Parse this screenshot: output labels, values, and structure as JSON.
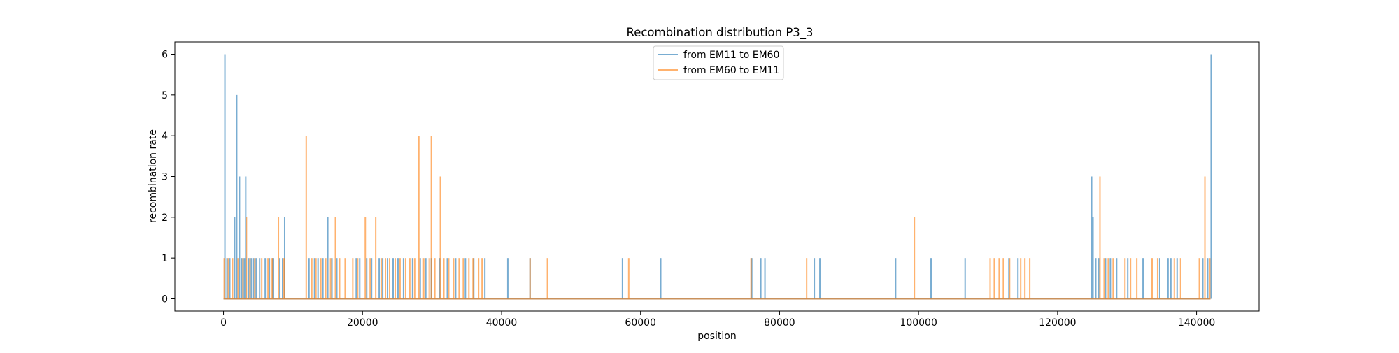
{
  "chart_data": {
    "type": "line",
    "title": "Recombination distribution P3_3",
    "xlabel": "position",
    "ylabel": "recombination rate",
    "xlim": [
      -7000,
      149000
    ],
    "ylim": [
      -0.3,
      6.3
    ],
    "xticks": [
      0,
      20000,
      40000,
      60000,
      80000,
      100000,
      120000,
      140000
    ],
    "xtick_labels": [
      "0",
      "20000",
      "40000",
      "60000",
      "80000",
      "100000",
      "120000",
      "140000"
    ],
    "yticks": [
      0,
      1,
      2,
      3,
      4,
      5,
      6
    ],
    "ytick_labels": [
      "0",
      "1",
      "2",
      "3",
      "4",
      "5",
      "6"
    ],
    "grid": false,
    "legend_position": "upper center",
    "x_range": [
      0,
      142000
    ],
    "series": [
      {
        "name": "from EM11 to EM60",
        "color": "#1f77b4",
        "spikes": [
          [
            200,
            6
          ],
          [
            500,
            1
          ],
          [
            900,
            1
          ],
          [
            1600,
            2
          ],
          [
            1900,
            5
          ],
          [
            2300,
            3
          ],
          [
            2600,
            1
          ],
          [
            3000,
            1
          ],
          [
            3200,
            3
          ],
          [
            3600,
            1
          ],
          [
            4000,
            1
          ],
          [
            4300,
            1
          ],
          [
            4700,
            1
          ],
          [
            5200,
            1
          ],
          [
            6000,
            1
          ],
          [
            6600,
            1
          ],
          [
            7100,
            1
          ],
          [
            8100,
            1
          ],
          [
            8500,
            1
          ],
          [
            8800,
            2
          ],
          [
            12300,
            1
          ],
          [
            13100,
            1
          ],
          [
            13600,
            1
          ],
          [
            14300,
            1
          ],
          [
            15000,
            2
          ],
          [
            15600,
            1
          ],
          [
            16300,
            1
          ],
          [
            19100,
            1
          ],
          [
            19600,
            1
          ],
          [
            20600,
            1
          ],
          [
            21300,
            1
          ],
          [
            22400,
            1
          ],
          [
            22900,
            1
          ],
          [
            23600,
            1
          ],
          [
            24400,
            1
          ],
          [
            25100,
            1
          ],
          [
            25900,
            1
          ],
          [
            27200,
            1
          ],
          [
            28300,
            1
          ],
          [
            29100,
            1
          ],
          [
            29900,
            1
          ],
          [
            31100,
            1
          ],
          [
            32200,
            1
          ],
          [
            33400,
            1
          ],
          [
            34800,
            1
          ],
          [
            36000,
            1
          ],
          [
            37600,
            1
          ],
          [
            40900,
            1
          ],
          [
            44100,
            1
          ],
          [
            57400,
            1
          ],
          [
            62900,
            1
          ],
          [
            76000,
            1
          ],
          [
            77300,
            1
          ],
          [
            77900,
            1
          ],
          [
            85000,
            1
          ],
          [
            85800,
            1
          ],
          [
            96700,
            1
          ],
          [
            101800,
            1
          ],
          [
            106700,
            1
          ],
          [
            113000,
            1
          ],
          [
            114300,
            1
          ],
          [
            124900,
            3
          ],
          [
            125100,
            2
          ],
          [
            125500,
            1
          ],
          [
            125900,
            1
          ],
          [
            126900,
            1
          ],
          [
            127600,
            1
          ],
          [
            128500,
            1
          ],
          [
            130100,
            1
          ],
          [
            132300,
            1
          ],
          [
            134700,
            1
          ],
          [
            135900,
            1
          ],
          [
            136300,
            1
          ],
          [
            137200,
            1
          ],
          [
            140900,
            1
          ],
          [
            141600,
            1
          ],
          [
            142100,
            6
          ]
        ]
      },
      {
        "name": "from EM60 to EM11",
        "color": "#ff7f0e",
        "spikes": [
          [
            100,
            1
          ],
          [
            700,
            1
          ],
          [
            1300,
            1
          ],
          [
            2100,
            1
          ],
          [
            2800,
            1
          ],
          [
            3300,
            2
          ],
          [
            3800,
            1
          ],
          [
            4500,
            1
          ],
          [
            5500,
            1
          ],
          [
            6400,
            1
          ],
          [
            7000,
            1
          ],
          [
            7900,
            2
          ],
          [
            8700,
            1
          ],
          [
            11900,
            4
          ],
          [
            12700,
            1
          ],
          [
            13300,
            1
          ],
          [
            14000,
            1
          ],
          [
            14700,
            1
          ],
          [
            15400,
            1
          ],
          [
            16100,
            2
          ],
          [
            16700,
            1
          ],
          [
            17500,
            1
          ],
          [
            18600,
            1
          ],
          [
            19300,
            1
          ],
          [
            20400,
            2
          ],
          [
            21100,
            1
          ],
          [
            21900,
            2
          ],
          [
            22700,
            1
          ],
          [
            23300,
            1
          ],
          [
            23900,
            1
          ],
          [
            24700,
            1
          ],
          [
            25400,
            1
          ],
          [
            26200,
            1
          ],
          [
            26800,
            1
          ],
          [
            27500,
            1
          ],
          [
            28100,
            4
          ],
          [
            28800,
            1
          ],
          [
            29600,
            1
          ],
          [
            29900,
            4
          ],
          [
            30400,
            1
          ],
          [
            31200,
            3
          ],
          [
            31700,
            1
          ],
          [
            32400,
            1
          ],
          [
            33100,
            1
          ],
          [
            33900,
            1
          ],
          [
            34500,
            1
          ],
          [
            35300,
            1
          ],
          [
            35900,
            1
          ],
          [
            36700,
            1
          ],
          [
            37200,
            1
          ],
          [
            44100,
            1
          ],
          [
            46600,
            1
          ],
          [
            58300,
            1
          ],
          [
            75900,
            1
          ],
          [
            83900,
            1
          ],
          [
            99400,
            2
          ],
          [
            110300,
            1
          ],
          [
            110900,
            1
          ],
          [
            111600,
            1
          ],
          [
            112200,
            1
          ],
          [
            113100,
            1
          ],
          [
            114700,
            1
          ],
          [
            115300,
            1
          ],
          [
            116000,
            1
          ],
          [
            126100,
            3
          ],
          [
            126700,
            1
          ],
          [
            127300,
            1
          ],
          [
            128000,
            1
          ],
          [
            129700,
            1
          ],
          [
            130500,
            1
          ],
          [
            131400,
            1
          ],
          [
            133600,
            1
          ],
          [
            134400,
            1
          ],
          [
            136800,
            1
          ],
          [
            137700,
            1
          ],
          [
            140400,
            1
          ],
          [
            141200,
            3
          ],
          [
            141900,
            1
          ]
        ]
      }
    ]
  }
}
